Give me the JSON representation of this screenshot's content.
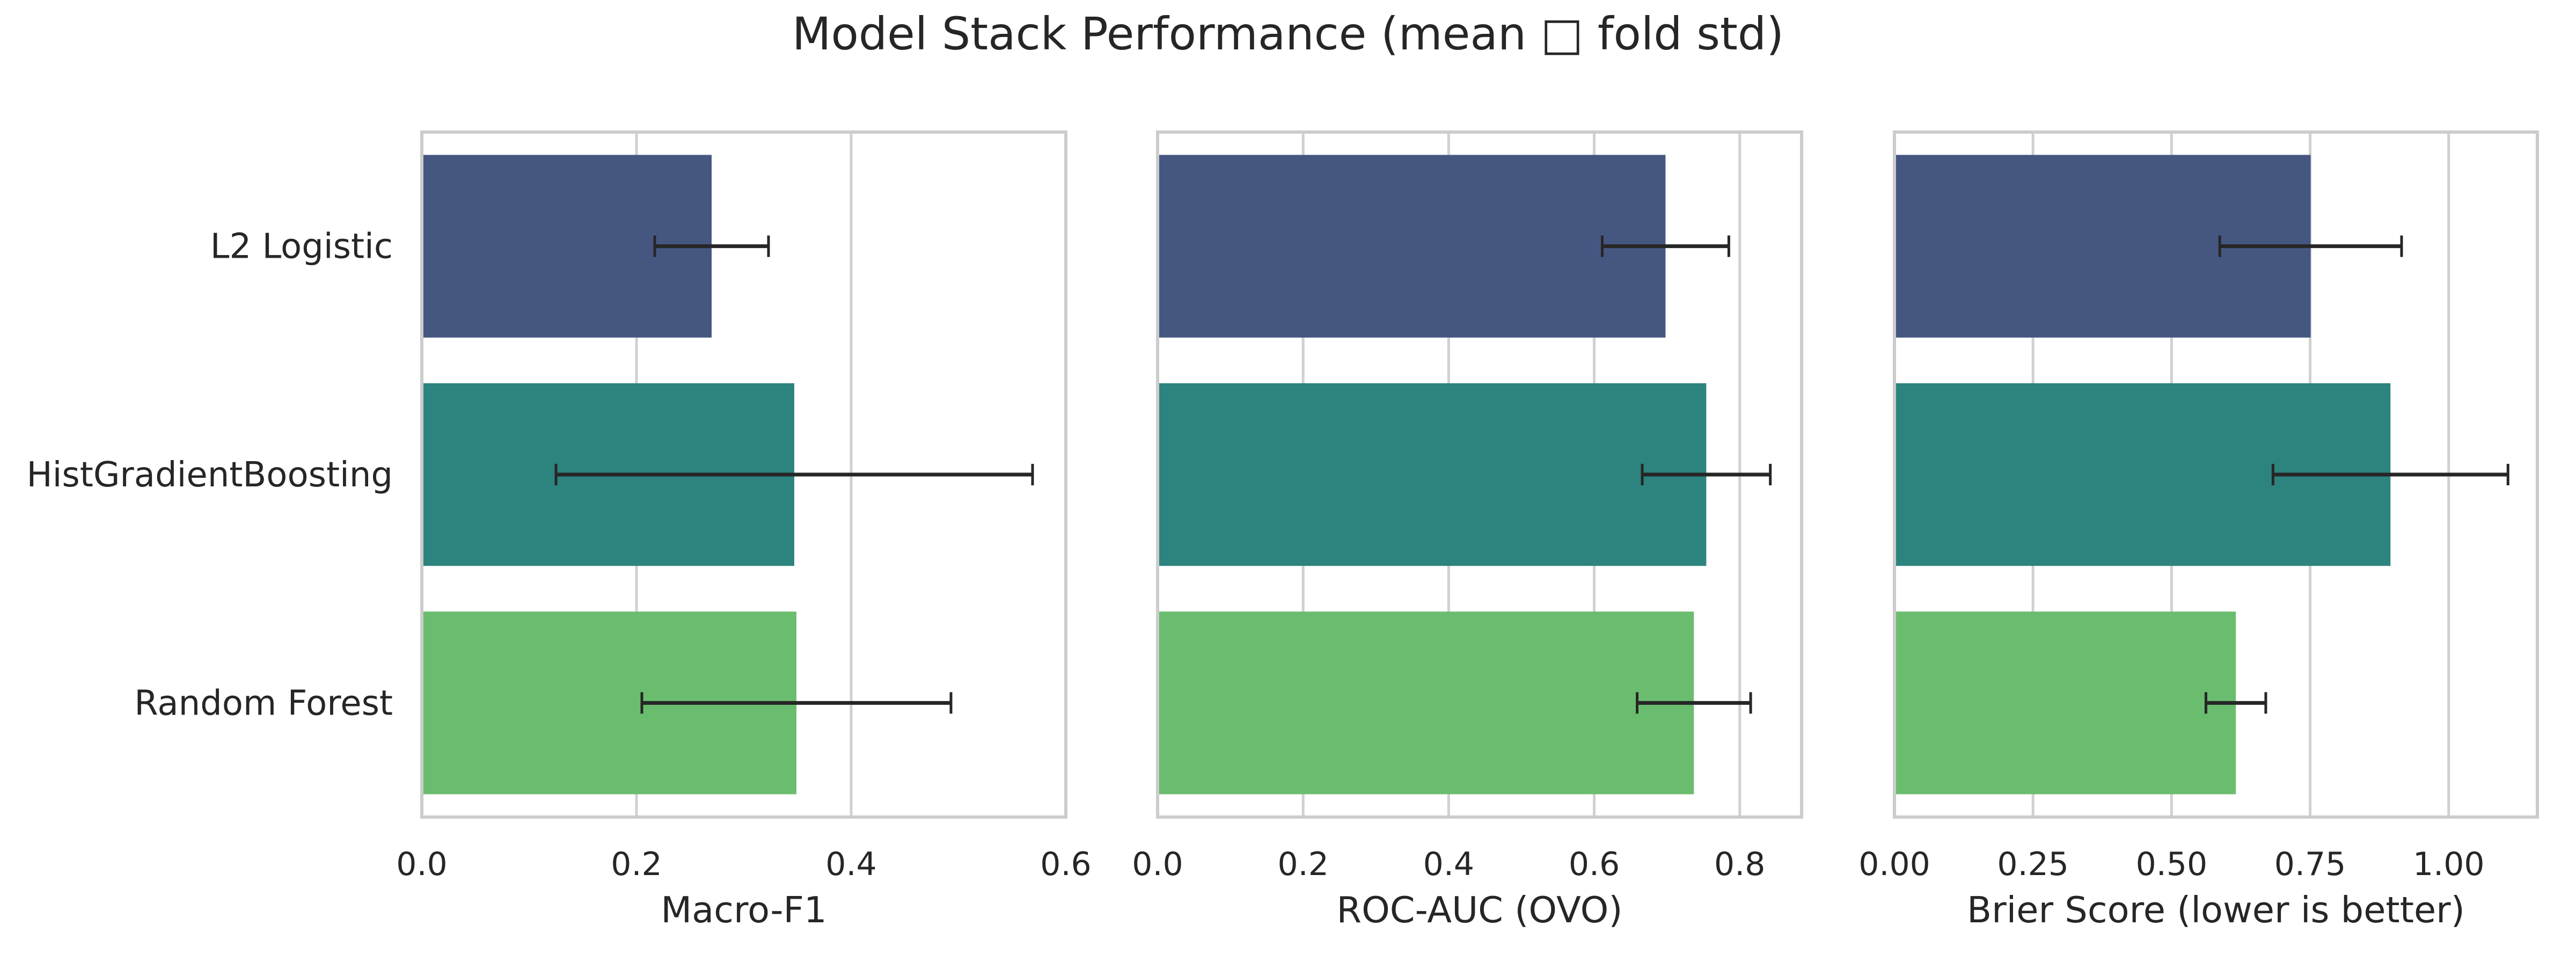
{
  "title": "Model Stack Performance (mean □ fold std)",
  "models": [
    "L2 Logistic",
    "HistGradientBoosting",
    "Random Forest"
  ],
  "colors": [
    "#455781",
    "#2d847e",
    "#6abd6e"
  ],
  "chart_data": [
    {
      "type": "bar",
      "orientation": "horizontal",
      "xlabel": "Macro-F1",
      "categories": [
        "L2 Logistic",
        "HistGradientBoosting",
        "Random Forest"
      ],
      "values": [
        0.27,
        0.347,
        0.349
      ],
      "errors": [
        0.053,
        0.222,
        0.144
      ],
      "xlim": [
        0,
        0.6
      ],
      "ticks": [
        0.0,
        0.2,
        0.4,
        0.6
      ],
      "tick_labels": [
        "0.0",
        "0.2",
        "0.4",
        "0.6"
      ],
      "grid": true
    },
    {
      "type": "bar",
      "orientation": "horizontal",
      "xlabel": "ROC-AUC (OVO)",
      "categories": [
        "L2 Logistic",
        "HistGradientBoosting",
        "Random Forest"
      ],
      "values": [
        0.698,
        0.754,
        0.737
      ],
      "errors": [
        0.087,
        0.088,
        0.078
      ],
      "xlim": [
        0,
        0.885
      ],
      "ticks": [
        0.0,
        0.2,
        0.4,
        0.6,
        0.8
      ],
      "tick_labels": [
        "0.0",
        "0.2",
        "0.4",
        "0.6",
        "0.8"
      ],
      "grid": true
    },
    {
      "type": "bar",
      "orientation": "horizontal",
      "xlabel": "Brier Score (lower is better)",
      "categories": [
        "L2 Logistic",
        "HistGradientBoosting",
        "Random Forest"
      ],
      "values": [
        0.751,
        0.895,
        0.616
      ],
      "errors": [
        0.164,
        0.212,
        0.054
      ],
      "xlim": [
        0,
        1.16
      ],
      "ticks": [
        0.0,
        0.25,
        0.5,
        0.75,
        1.0
      ],
      "tick_labels": [
        "0.00",
        "0.25",
        "0.50",
        "0.75",
        "1.00"
      ],
      "grid": true
    }
  ]
}
